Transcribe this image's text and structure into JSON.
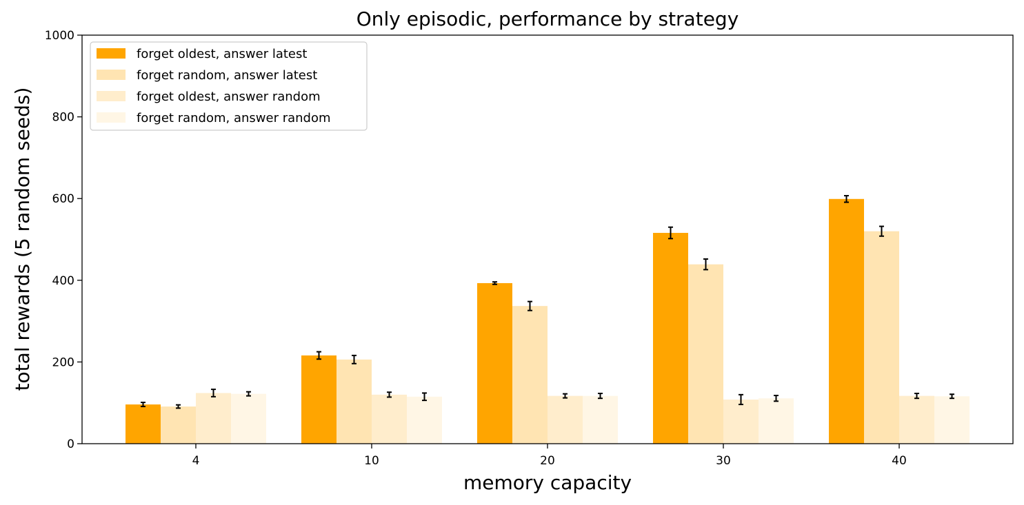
{
  "chart_data": {
    "type": "bar",
    "title": "Only episodic, performance by strategy",
    "xlabel": "memory capacity",
    "ylabel": "total rewards (5 random seeds)",
    "categories": [
      "4",
      "10",
      "20",
      "30",
      "40"
    ],
    "ylim": [
      0,
      1000
    ],
    "yticks": [
      0,
      200,
      400,
      600,
      800,
      1000
    ],
    "legend_position": "top-left",
    "series": [
      {
        "name": "forget oldest, answer latest",
        "color": "#FFA500",
        "opacity": 1.0,
        "values": [
          96,
          216,
          393,
          516,
          599
        ],
        "errors": [
          5,
          9,
          3,
          14,
          8
        ]
      },
      {
        "name": "forget random, answer latest",
        "color": "#FFA500",
        "opacity": 0.3,
        "values": [
          91,
          206,
          337,
          439,
          520
        ],
        "errors": [
          4,
          10,
          11,
          13,
          12
        ]
      },
      {
        "name": "forget oldest, answer random",
        "color": "#FFA500",
        "opacity": 0.2,
        "values": [
          124,
          120,
          117,
          108,
          117
        ],
        "errors": [
          9,
          6,
          5,
          12,
          6
        ]
      },
      {
        "name": "forget random, answer random",
        "color": "#FFA500",
        "opacity": 0.1,
        "values": [
          122,
          115,
          117,
          111,
          116
        ],
        "errors": [
          5,
          9,
          6,
          7,
          5
        ]
      }
    ]
  }
}
